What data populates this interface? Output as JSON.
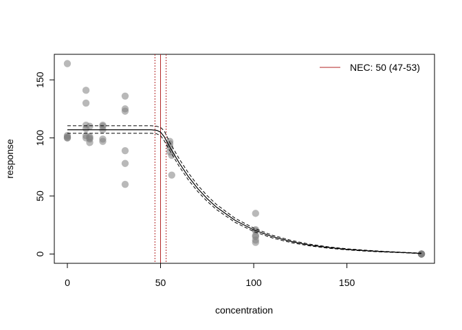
{
  "chart_data": {
    "type": "scatter",
    "title": "",
    "xlabel": "concentration",
    "ylabel": "response",
    "xlim": [
      -7,
      197
    ],
    "ylim": [
      -8,
      172
    ],
    "xticks": [
      0,
      50,
      100,
      150
    ],
    "yticks": [
      0,
      50,
      100,
      150
    ],
    "grid": false,
    "legend": {
      "placement": "top-right",
      "entries": [
        {
          "label": "NEC: 50 (47-53)",
          "color": "#b22222"
        }
      ]
    },
    "nec": {
      "estimate": 50,
      "lower": 47,
      "upper": 53,
      "color": "#b22222"
    },
    "points": {
      "color": "#808080",
      "x": [
        0,
        0,
        0,
        0,
        0,
        10,
        10,
        10,
        10,
        10,
        10,
        12,
        12,
        12,
        12,
        12,
        19,
        19,
        19,
        19,
        19,
        31,
        31,
        31,
        31,
        31,
        31,
        55,
        55,
        55,
        55,
        56,
        56,
        101,
        101,
        101,
        101,
        101,
        101,
        101,
        190,
        190,
        190,
        190,
        190
      ],
      "y": [
        164,
        100,
        101,
        102,
        100,
        141,
        130,
        111,
        102,
        100,
        108,
        110,
        101,
        99,
        96,
        100,
        111,
        110,
        107,
        99,
        97,
        136,
        125,
        123,
        89,
        78,
        60,
        97,
        95,
        92,
        88,
        85,
        68,
        35,
        21,
        20,
        16,
        15,
        12,
        10,
        0,
        0,
        0,
        0,
        0
      ]
    },
    "curve": {
      "color": "#000000",
      "x": [
        0,
        10,
        20,
        30,
        40,
        45,
        48,
        50,
        52,
        55,
        60,
        65,
        70,
        75,
        80,
        90,
        100,
        110,
        120,
        130,
        140,
        150,
        160,
        170,
        180,
        190
      ],
      "median": [
        107,
        107,
        107,
        107,
        107,
        107,
        106.5,
        105,
        101,
        92,
        78.5,
        66.5,
        56.3,
        47.7,
        40.4,
        29,
        20.8,
        15,
        10.8,
        7.7,
        5.6,
        4,
        2.9,
        2,
        1.3,
        0.5
      ],
      "lower": [
        104,
        104,
        104,
        104,
        104,
        104,
        103.5,
        102,
        97.5,
        89,
        75.5,
        63.7,
        53.8,
        45.4,
        38.3,
        27.3,
        19.4,
        13.8,
        9.8,
        7,
        5,
        3.6,
        2.5,
        1.7,
        1.1,
        0.3
      ],
      "upper": [
        110.5,
        110.5,
        110.5,
        110.5,
        110.5,
        110.5,
        110,
        109,
        106,
        96,
        82,
        69.7,
        59.2,
        50.3,
        42.7,
        30.8,
        22.3,
        16.2,
        11.8,
        8.5,
        6.2,
        4.5,
        3.3,
        2.3,
        1.5,
        0.8
      ]
    }
  }
}
